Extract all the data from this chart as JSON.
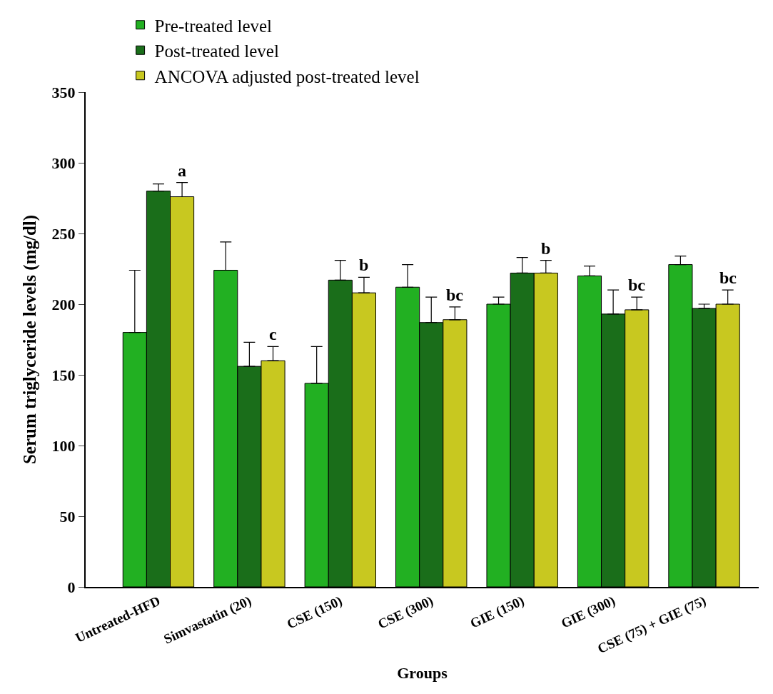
{
  "chart_data": {
    "type": "bar",
    "xlabel": "Groups",
    "ylabel": "Serum triglyceride levels (mg/dl)",
    "categories": [
      "Untreated-HFD",
      "Simvastatin (20)",
      "CSE (150)",
      "CSE (300)",
      "GIE (150)",
      "GIE (300)",
      "CSE (75) + GIE (75)"
    ],
    "series": [
      {
        "name": "Pre-treated level",
        "color": "#22b022",
        "values": [
          180,
          224,
          144,
          212,
          200,
          220,
          228
        ],
        "errors": [
          [
            180,
            224
          ],
          [
            224,
            244
          ],
          [
            144,
            170
          ],
          [
            212,
            228
          ],
          [
            200,
            205
          ],
          [
            220,
            227
          ],
          [
            228,
            234
          ]
        ]
      },
      {
        "name": "Post-treated level",
        "color": "#1a6e1a",
        "values": [
          280,
          156,
          217,
          187,
          222,
          193,
          197
        ],
        "errors": [
          [
            280,
            285
          ],
          [
            156,
            173
          ],
          [
            217,
            231
          ],
          [
            187,
            205
          ],
          [
            222,
            233
          ],
          [
            193,
            210
          ],
          [
            197,
            200
          ]
        ]
      },
      {
        "name": "ANCOVA adjusted post-treated level",
        "color": "#c8c820",
        "values": [
          276,
          160,
          208,
          189,
          222,
          196,
          200
        ],
        "errors": [
          [
            276,
            286
          ],
          [
            160,
            170
          ],
          [
            208,
            219
          ],
          [
            189,
            198
          ],
          [
            222,
            231
          ],
          [
            196,
            205
          ],
          [
            200,
            210
          ]
        ]
      }
    ],
    "ylim": [
      0,
      350
    ],
    "yticks": [
      0,
      50,
      100,
      150,
      200,
      250,
      300,
      350
    ],
    "legend": "top left",
    "annotations": [
      "a",
      "c",
      "b",
      "bc",
      "b",
      "bc",
      "bc"
    ]
  }
}
